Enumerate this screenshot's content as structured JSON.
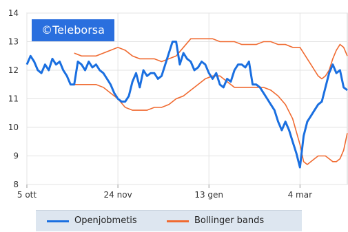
{
  "badge": "©Teleborsa",
  "chart_data": {
    "type": "line",
    "x_tick_labels": [
      "5 ott",
      "24 nov",
      "13 gen",
      "4 mar"
    ],
    "x_tick_pos": [
      0,
      50,
      100,
      150
    ],
    "ylim": [
      8,
      14
    ],
    "yticks": [
      8,
      9,
      10,
      11,
      12,
      13,
      14
    ],
    "grid": true,
    "legend_position": "bottom",
    "series": [
      {
        "name": "Openjobmetis",
        "color": "#1a6fe0",
        "x": [
          0,
          2,
          4,
          6,
          8,
          10,
          12,
          14,
          16,
          18,
          20,
          22,
          24,
          26,
          28,
          30,
          32,
          34,
          36,
          38,
          40,
          42,
          44,
          46,
          48,
          50,
          52,
          54,
          56,
          58,
          60,
          62,
          64,
          66,
          68,
          70,
          72,
          74,
          76,
          78,
          80,
          82,
          84,
          86,
          88,
          90,
          92,
          94,
          96,
          98,
          100,
          102,
          104,
          106,
          108,
          110,
          112,
          114,
          116,
          118,
          120,
          122,
          124,
          126,
          128,
          130,
          132,
          134,
          136,
          138,
          140,
          142,
          144,
          146,
          148,
          150,
          152,
          154,
          156,
          158,
          160,
          162,
          164,
          166,
          168,
          170,
          172,
          174,
          176
        ],
        "y": [
          12.2,
          12.5,
          12.3,
          12.0,
          11.9,
          12.2,
          12.0,
          12.4,
          12.2,
          12.3,
          12.0,
          11.8,
          11.5,
          11.5,
          12.3,
          12.2,
          12.0,
          12.3,
          12.1,
          12.2,
          12.0,
          11.9,
          11.7,
          11.5,
          11.2,
          11.0,
          10.9,
          10.9,
          11.1,
          11.6,
          11.9,
          11.4,
          12.0,
          11.8,
          11.9,
          11.9,
          11.7,
          11.8,
          12.2,
          12.6,
          13.0,
          13.0,
          12.2,
          12.6,
          12.4,
          12.3,
          12.0,
          12.1,
          12.3,
          12.2,
          11.9,
          11.7,
          11.9,
          11.5,
          11.4,
          11.7,
          11.6,
          12.0,
          12.2,
          12.2,
          12.1,
          12.3,
          11.5,
          11.5,
          11.4,
          11.2,
          11.0,
          10.8,
          10.6,
          10.2,
          9.9,
          10.2,
          9.9,
          9.5,
          9.1,
          8.6,
          9.7,
          10.2,
          10.4,
          10.6,
          10.8,
          10.9,
          11.4,
          11.9,
          12.2,
          11.9,
          12.0,
          11.4,
          11.3
        ]
      },
      {
        "name": "Bollinger bands",
        "color": "#f06a30",
        "upper_x": [
          26,
          30,
          34,
          38,
          42,
          46,
          50,
          54,
          58,
          62,
          66,
          70,
          74,
          78,
          82,
          86,
          90,
          94,
          98,
          102,
          106,
          110,
          114,
          118,
          122,
          126,
          130,
          134,
          138,
          142,
          146,
          150,
          152,
          154,
          156,
          158,
          160,
          162,
          164,
          166,
          168,
          170,
          172,
          174,
          176
        ],
        "upper_y": [
          12.6,
          12.5,
          12.5,
          12.5,
          12.6,
          12.7,
          12.8,
          12.7,
          12.5,
          12.4,
          12.4,
          12.4,
          12.3,
          12.4,
          12.5,
          12.8,
          13.1,
          13.1,
          13.1,
          13.1,
          13.0,
          13.0,
          13.0,
          12.9,
          12.9,
          12.9,
          13.0,
          13.0,
          12.9,
          12.9,
          12.8,
          12.8,
          12.6,
          12.4,
          12.2,
          12.0,
          11.8,
          11.7,
          11.8,
          12.0,
          12.4,
          12.7,
          12.9,
          12.8,
          12.5
        ],
        "lower_x": [
          26,
          30,
          34,
          38,
          42,
          46,
          50,
          54,
          58,
          62,
          66,
          70,
          74,
          78,
          82,
          86,
          90,
          94,
          98,
          102,
          106,
          110,
          114,
          118,
          122,
          126,
          130,
          134,
          138,
          142,
          146,
          150,
          152,
          154,
          156,
          158,
          160,
          162,
          164,
          166,
          168,
          170,
          172,
          174,
          176
        ],
        "lower_y": [
          11.5,
          11.5,
          11.5,
          11.5,
          11.4,
          11.2,
          11.0,
          10.7,
          10.6,
          10.6,
          10.6,
          10.7,
          10.7,
          10.8,
          11.0,
          11.1,
          11.3,
          11.5,
          11.7,
          11.8,
          11.8,
          11.6,
          11.4,
          11.4,
          11.4,
          11.4,
          11.4,
          11.3,
          11.1,
          10.8,
          10.3,
          9.4,
          8.8,
          8.7,
          8.8,
          8.9,
          9.0,
          9.0,
          9.0,
          8.9,
          8.8,
          8.8,
          8.9,
          9.2,
          9.8
        ]
      }
    ]
  }
}
